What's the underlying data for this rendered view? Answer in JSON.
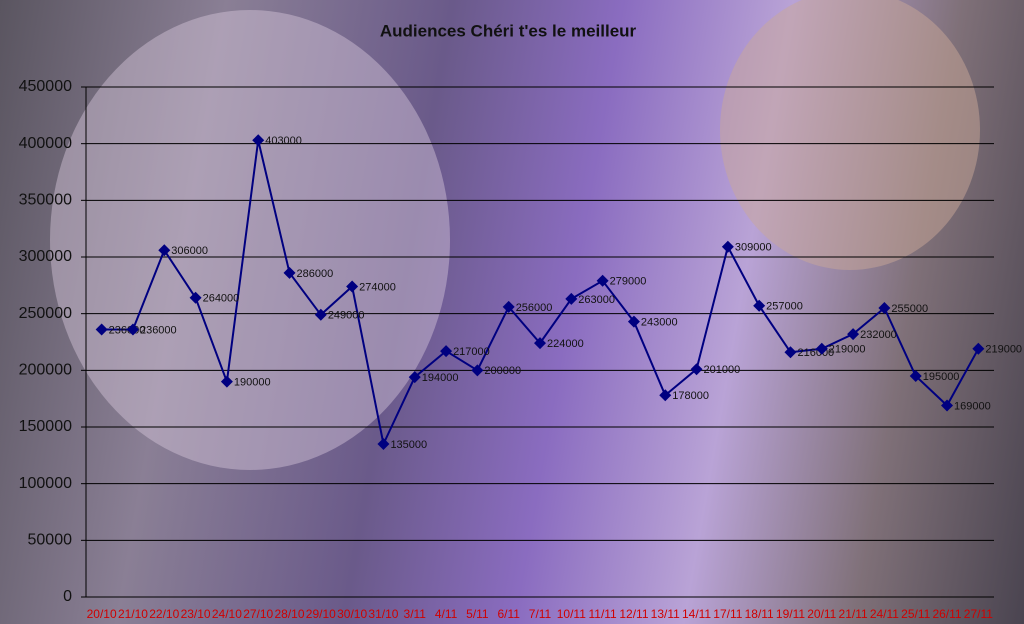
{
  "chart_data": {
    "type": "line",
    "title": "Audiences Chéri t'es le meilleur",
    "categories": [
      "20/10",
      "21/10",
      "22/10",
      "23/10",
      "24/10",
      "27/10",
      "28/10",
      "29/10",
      "30/10",
      "31/10",
      "3/11",
      "4/11",
      "5/11",
      "6/11",
      "7/11",
      "10/11",
      "11/11",
      "12/11",
      "13/11",
      "14/11",
      "17/11",
      "18/11",
      "19/11",
      "20/11",
      "21/11",
      "24/11",
      "25/11",
      "26/11",
      "27/11"
    ],
    "series": [
      {
        "color": "#000080",
        "values": [
          236000,
          236000,
          306000,
          264000,
          190000,
          403000,
          286000,
          249000,
          274000,
          135000,
          194000,
          217000,
          200000,
          256000,
          224000,
          263000,
          279000,
          243000,
          178000,
          201000,
          309000,
          257000,
          216000,
          219000,
          232000,
          255000,
          195000,
          169000,
          219000
        ]
      }
    ],
    "ylim": [
      0,
      450000
    ],
    "yticks": [
      0,
      50000,
      100000,
      150000,
      200000,
      250000,
      300000,
      350000,
      400000,
      450000
    ],
    "grid": true
  }
}
